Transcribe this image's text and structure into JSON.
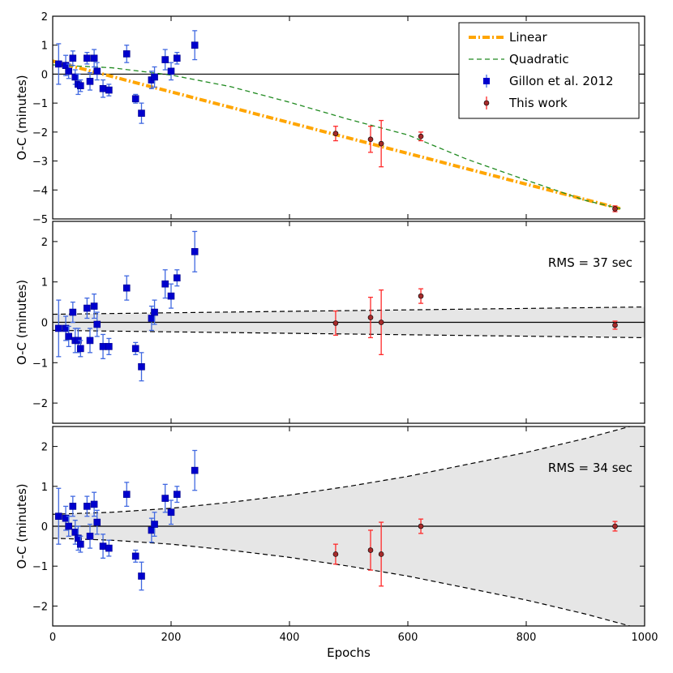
{
  "figure": {
    "xlabel": "Epochs",
    "xlim": [
      0,
      1000
    ],
    "xticks": [
      0,
      200,
      400,
      600,
      800,
      1000
    ],
    "colors": {
      "linear": "#FFA500",
      "quadratic": "#228B22",
      "gillon": "#0000CD",
      "gillon_err": "#4169E1",
      "thiswork_fill": "#A52A2A",
      "thiswork_err": "#FF2A2A",
      "band": "#E6E6E6"
    }
  },
  "chart_data": [
    {
      "type": "scatter",
      "panel": "top",
      "ylabel": "O-C (minutes)",
      "ylim": [
        -5,
        2
      ],
      "yticks": [
        -5,
        -4,
        -3,
        -2,
        -1,
        0,
        1,
        2
      ],
      "legend": {
        "placement": "top-right",
        "entries": [
          "Linear",
          "Quadratic",
          "Gillon et al. 2012",
          "This work"
        ]
      },
      "series": [
        {
          "name": "Gillon et al. 2012",
          "marker": "square",
          "x": [
            10,
            22,
            27,
            34,
            38,
            43,
            47,
            58,
            63,
            70,
            75,
            85,
            95,
            125,
            140,
            150,
            167,
            172,
            190,
            200,
            210,
            240
          ],
          "y": [
            0.35,
            0.3,
            0.1,
            0.55,
            -0.1,
            -0.35,
            -0.4,
            0.55,
            -0.25,
            0.55,
            0.1,
            -0.5,
            -0.55,
            0.7,
            -0.85,
            -1.35,
            -0.2,
            -0.1,
            0.5,
            0.1,
            0.55,
            1.0
          ],
          "err": [
            0.7,
            0.35,
            0.25,
            0.25,
            0.25,
            0.35,
            0.2,
            0.2,
            0.3,
            0.3,
            0.3,
            0.3,
            0.2,
            0.3,
            0.15,
            0.35,
            0.3,
            0.35,
            0.35,
            0.3,
            0.2,
            0.5
          ]
        },
        {
          "name": "This work",
          "marker": "circle",
          "x": [
            478,
            537,
            555,
            622,
            950
          ],
          "y": [
            -2.05,
            -2.25,
            -2.4,
            -2.15,
            -4.65
          ],
          "err": [
            0.25,
            0.45,
            0.8,
            0.15,
            0.1
          ]
        },
        {
          "name": "Linear",
          "kind": "line",
          "x": [
            0,
            960
          ],
          "y": [
            0.45,
            -4.65
          ]
        },
        {
          "name": "Quadratic",
          "kind": "line",
          "x": [
            0,
            100,
            200,
            300,
            400,
            500,
            600,
            700,
            800,
            900,
            960
          ],
          "y": [
            0.32,
            0.22,
            -0.03,
            -0.43,
            -0.97,
            -1.56,
            -2.1,
            -2.94,
            -3.66,
            -4.36,
            -4.65
          ]
        }
      ]
    },
    {
      "type": "scatter",
      "panel": "middle",
      "ylabel": "O-C (minutes)",
      "ylim": [
        -2.5,
        2.5
      ],
      "yticks": [
        -2,
        -1,
        0,
        1,
        2
      ],
      "annotation": "RMS = 37 sec",
      "band": {
        "x": [
          0,
          1000
        ],
        "upper": [
          0.2,
          0.38
        ],
        "lower": [
          -0.2,
          -0.38
        ]
      },
      "series": [
        {
          "name": "Gillon et al. 2012",
          "marker": "square",
          "x": [
            10,
            22,
            27,
            34,
            38,
            43,
            47,
            58,
            63,
            70,
            75,
            85,
            95,
            125,
            140,
            150,
            167,
            172,
            190,
            200,
            210,
            240
          ],
          "y": [
            -0.15,
            -0.15,
            -0.35,
            0.25,
            -0.45,
            -0.45,
            -0.65,
            0.35,
            -0.45,
            0.4,
            -0.05,
            -0.6,
            -0.6,
            0.85,
            -0.65,
            -1.1,
            0.1,
            0.25,
            0.95,
            0.65,
            1.1,
            1.75
          ],
          "err": [
            0.7,
            0.3,
            0.25,
            0.25,
            0.3,
            0.3,
            0.2,
            0.25,
            0.3,
            0.3,
            0.3,
            0.3,
            0.2,
            0.3,
            0.15,
            0.35,
            0.3,
            0.3,
            0.35,
            0.3,
            0.2,
            0.5
          ]
        },
        {
          "name": "This work",
          "marker": "circle",
          "x": [
            478,
            537,
            555,
            622,
            950
          ],
          "y": [
            -0.02,
            0.12,
            0.0,
            0.65,
            -0.07
          ],
          "err": [
            0.3,
            0.5,
            0.8,
            0.18,
            0.1
          ]
        }
      ]
    },
    {
      "type": "scatter",
      "panel": "bottom",
      "ylabel": "O-C (minutes)",
      "ylim": [
        -2.5,
        2.5
      ],
      "yticks": [
        -2,
        -1,
        0,
        1,
        2
      ],
      "annotation": "RMS = 34 sec",
      "band": {
        "x": [
          0,
          100,
          200,
          300,
          400,
          500,
          600,
          700,
          800,
          900,
          1000
        ],
        "upper": [
          0.3,
          0.35,
          0.45,
          0.6,
          0.78,
          1.0,
          1.25,
          1.55,
          1.85,
          2.2,
          2.6
        ],
        "lower": [
          -0.3,
          -0.35,
          -0.45,
          -0.6,
          -0.78,
          -1.0,
          -1.25,
          -1.55,
          -1.85,
          -2.2,
          -2.6
        ]
      },
      "series": [
        {
          "name": "Gillon et al. 2012",
          "marker": "square",
          "x": [
            10,
            22,
            27,
            34,
            38,
            43,
            47,
            58,
            63,
            70,
            75,
            85,
            95,
            125,
            140,
            150,
            167,
            172,
            190,
            200,
            210,
            240
          ],
          "y": [
            0.25,
            0.2,
            0.0,
            0.5,
            -0.15,
            -0.3,
            -0.45,
            0.5,
            -0.25,
            0.55,
            0.1,
            -0.5,
            -0.55,
            0.8,
            -0.75,
            -1.25,
            -0.1,
            0.05,
            0.7,
            0.35,
            0.8,
            1.4
          ],
          "err": [
            0.7,
            0.3,
            0.25,
            0.25,
            0.3,
            0.3,
            0.2,
            0.25,
            0.3,
            0.3,
            0.3,
            0.3,
            0.2,
            0.3,
            0.15,
            0.35,
            0.3,
            0.3,
            0.35,
            0.3,
            0.2,
            0.5
          ]
        },
        {
          "name": "This work",
          "marker": "circle",
          "x": [
            478,
            537,
            555,
            622,
            950
          ],
          "y": [
            -0.7,
            -0.6,
            -0.7,
            0.0,
            0.0
          ],
          "err": [
            0.25,
            0.5,
            0.8,
            0.18,
            0.12
          ]
        }
      ]
    }
  ]
}
